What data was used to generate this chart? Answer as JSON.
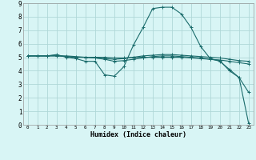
{
  "xlabel": "Humidex (Indice chaleur)",
  "bg_color": "#d8f5f5",
  "grid_color": "#b0d8d8",
  "line_color": "#1a6b6b",
  "xlim": [
    -0.5,
    23.5
  ],
  "ylim": [
    0,
    9
  ],
  "xticks": [
    0,
    1,
    2,
    3,
    4,
    5,
    6,
    7,
    8,
    9,
    10,
    11,
    12,
    13,
    14,
    15,
    16,
    17,
    18,
    19,
    20,
    21,
    22,
    23
  ],
  "yticks": [
    0,
    1,
    2,
    3,
    4,
    5,
    6,
    7,
    8,
    9
  ],
  "lines": [
    {
      "x": [
        0,
        1,
        2,
        3,
        4,
        5,
        6,
        7,
        8,
        9,
        10,
        11,
        12,
        13,
        14,
        15,
        16,
        17,
        18,
        19,
        20,
        21,
        22,
        23
      ],
      "y": [
        5.1,
        5.1,
        5.1,
        5.2,
        5.0,
        4.9,
        4.7,
        4.7,
        3.7,
        3.6,
        4.3,
        5.9,
        7.2,
        8.6,
        8.7,
        8.7,
        8.2,
        7.2,
        5.8,
        4.9,
        4.7,
        4.1,
        3.5,
        2.4
      ]
    },
    {
      "x": [
        0,
        1,
        2,
        3,
        4,
        5,
        6,
        7,
        8,
        9,
        10,
        11,
        12,
        13,
        14,
        15,
        16,
        17,
        18,
        19,
        20,
        21,
        22,
        23
      ],
      "y": [
        5.1,
        5.1,
        5.1,
        5.1,
        5.1,
        5.05,
        5.0,
        4.95,
        4.85,
        4.7,
        4.75,
        4.85,
        4.95,
        5.05,
        5.1,
        5.1,
        5.05,
        5.0,
        4.95,
        4.85,
        4.75,
        4.0,
        3.5,
        0.1
      ]
    },
    {
      "x": [
        0,
        1,
        2,
        3,
        4,
        5,
        6,
        7,
        8,
        9,
        10,
        11,
        12,
        13,
        14,
        15,
        16,
        17,
        18,
        19,
        20,
        21,
        22,
        23
      ],
      "y": [
        5.1,
        5.1,
        5.1,
        5.15,
        5.05,
        5.0,
        5.0,
        4.95,
        4.9,
        4.85,
        4.9,
        5.0,
        5.1,
        5.15,
        5.2,
        5.2,
        5.15,
        5.1,
        5.05,
        5.0,
        4.95,
        4.85,
        4.75,
        4.7
      ]
    },
    {
      "x": [
        0,
        1,
        2,
        3,
        4,
        5,
        6,
        7,
        8,
        9,
        10,
        11,
        12,
        13,
        14,
        15,
        16,
        17,
        18,
        19,
        20,
        21,
        22,
        23
      ],
      "y": [
        5.1,
        5.1,
        5.1,
        5.1,
        5.05,
        5.0,
        5.0,
        5.0,
        5.0,
        4.95,
        4.95,
        5.0,
        5.0,
        5.0,
        5.0,
        5.0,
        5.0,
        4.95,
        4.9,
        4.85,
        4.8,
        4.7,
        4.6,
        4.5
      ]
    }
  ]
}
